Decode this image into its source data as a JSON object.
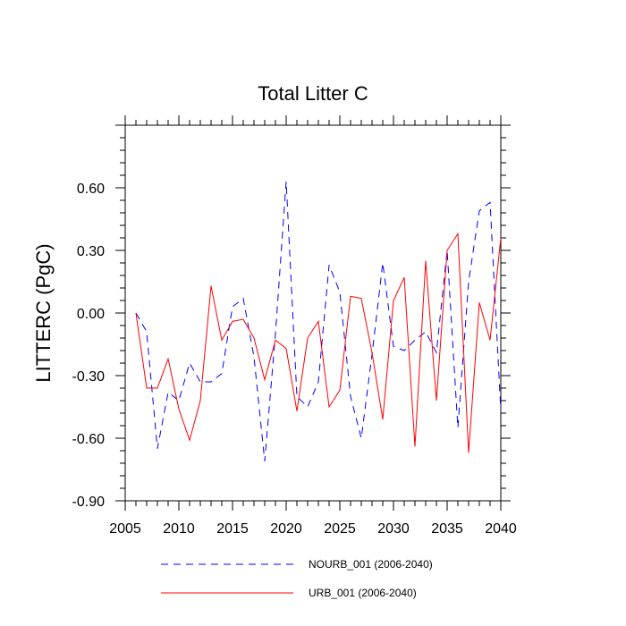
{
  "chart_data": {
    "type": "line",
    "title": "Total Litter C",
    "xlabel": "",
    "ylabel": "LITTERC  (PgC)",
    "xlim": [
      2005,
      2040
    ],
    "ylim": [
      -0.9,
      0.9
    ],
    "x_ticks": [
      2005,
      2010,
      2015,
      2020,
      2025,
      2030,
      2035,
      2040
    ],
    "x_tick_labels": [
      "2005",
      "2010",
      "2015",
      "2020",
      "2025",
      "2030",
      "2035",
      "2040"
    ],
    "y_ticks": [
      -0.9,
      -0.6,
      -0.3,
      0.0,
      0.3,
      0.6
    ],
    "y_tick_labels": [
      "-0.90",
      "-0.60",
      "-0.30",
      "0.00",
      "0.30",
      "0.60"
    ],
    "grid": false,
    "legend_position": "bottom",
    "x": [
      2006,
      2007,
      2008,
      2009,
      2010,
      2011,
      2012,
      2013,
      2014,
      2015,
      2016,
      2017,
      2018,
      2019,
      2020,
      2021,
      2022,
      2023,
      2024,
      2025,
      2026,
      2027,
      2028,
      2029,
      2030,
      2031,
      2032,
      2033,
      2034,
      2035,
      2036,
      2037,
      2038,
      2039,
      2040
    ],
    "series": [
      {
        "name": "NOURB_001 (2006-2040)",
        "color": "#0000ff",
        "style": "dashed",
        "values": [
          0.0,
          -0.09,
          -0.65,
          -0.38,
          -0.42,
          -0.24,
          -0.33,
          -0.33,
          -0.29,
          0.03,
          0.07,
          -0.21,
          -0.71,
          -0.1,
          0.63,
          -0.4,
          -0.45,
          -0.33,
          0.23,
          0.1,
          -0.4,
          -0.6,
          -0.2,
          0.24,
          -0.16,
          -0.18,
          -0.13,
          -0.09,
          -0.19,
          0.3,
          -0.55,
          0.15,
          0.49,
          0.53,
          -0.47
        ]
      },
      {
        "name": "URB_001 (2006-2040)",
        "color": "#ff0000",
        "style": "solid",
        "values": [
          0.0,
          -0.36,
          -0.36,
          -0.22,
          -0.46,
          -0.61,
          -0.42,
          0.13,
          -0.13,
          -0.04,
          -0.03,
          -0.12,
          -0.32,
          -0.13,
          -0.17,
          -0.47,
          -0.12,
          -0.04,
          -0.45,
          -0.37,
          0.08,
          0.07,
          -0.19,
          -0.51,
          0.06,
          0.17,
          -0.64,
          0.25,
          -0.42,
          0.3,
          0.38,
          -0.67,
          0.05,
          -0.13,
          0.36
        ]
      }
    ]
  }
}
